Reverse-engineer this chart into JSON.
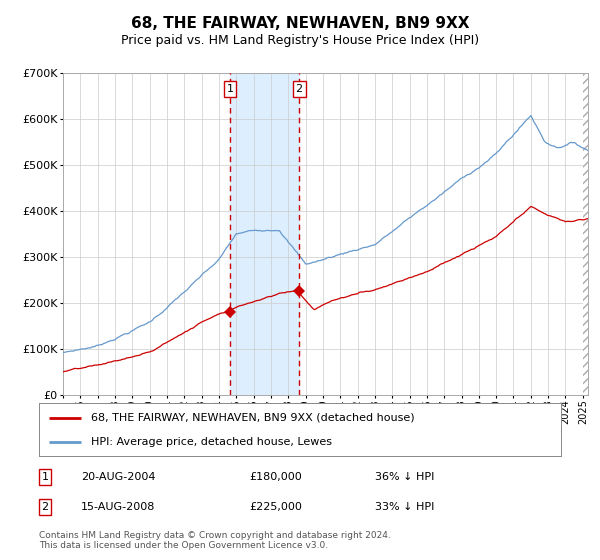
{
  "title": "68, THE FAIRWAY, NEWHAVEN, BN9 9XX",
  "subtitle": "Price paid vs. HM Land Registry's House Price Index (HPI)",
  "footer": "Contains HM Land Registry data © Crown copyright and database right 2024.\nThis data is licensed under the Open Government Licence v3.0.",
  "legend_line1": "68, THE FAIRWAY, NEWHAVEN, BN9 9XX (detached house)",
  "legend_line2": "HPI: Average price, detached house, Lewes",
  "transaction1_date": "20-AUG-2004",
  "transaction1_price": "£180,000",
  "transaction1_hpi": "36% ↓ HPI",
  "transaction2_date": "15-AUG-2008",
  "transaction2_price": "£225,000",
  "transaction2_hpi": "33% ↓ HPI",
  "hpi_color": "#6699cc",
  "price_color": "#cc0000",
  "background_color": "#ffffff",
  "grid_color": "#cccccc",
  "shade_color": "#ddeeff",
  "dashed_line_color": "#cc0000",
  "marker_color": "#cc0000",
  "ylim": [
    0,
    700000
  ],
  "xlim_start": 1995.0,
  "xlim_end": 2025.3,
  "transaction1_x": 2004.63,
  "transaction2_x": 2008.63,
  "transaction1_y": 180000,
  "transaction2_y": 225000
}
